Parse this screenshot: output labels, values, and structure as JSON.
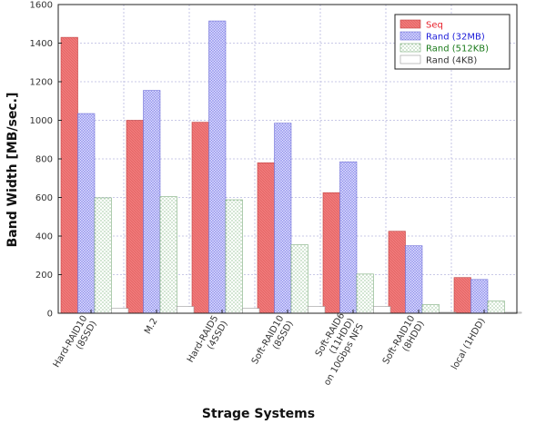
{
  "chart_data": {
    "type": "bar",
    "title": "",
    "xlabel": "Strage Systems",
    "ylabel": "Band Width [MB/sec.]",
    "ylim": [
      0,
      1600
    ],
    "yticks": [
      0,
      200,
      400,
      600,
      800,
      1000,
      1200,
      1400,
      1600
    ],
    "grid": true,
    "legend_position": "top-right",
    "categories": [
      [
        "Hard-RAID10",
        "(8SSD)"
      ],
      [
        "M.2"
      ],
      [
        "Hard-RAID5",
        "(4SSD)"
      ],
      [
        "Soft-RAID10",
        "(8SSD)"
      ],
      [
        "Soft-RAID6",
        "(11HDD)",
        "on 10Gbps NFS"
      ],
      [
        "Soft-RAID10",
        "(8HDD)"
      ],
      [
        "local (1HDD)"
      ]
    ],
    "series": [
      {
        "name": "Seq",
        "values": [
          1430,
          1000,
          990,
          780,
          625,
          425,
          185
        ],
        "color": "#f08080",
        "pattern": "solid-hatch",
        "legend_color": "#e8202a"
      },
      {
        "name": "Rand (32MB)",
        "values": [
          1035,
          1155,
          1515,
          985,
          785,
          350,
          175
        ],
        "color": "#c8c8f8",
        "pattern": "crosshatch",
        "legend_color": "#1a1ad8"
      },
      {
        "name": "Rand (512KB)",
        "values": [
          598,
          604,
          588,
          355,
          203,
          45,
          63
        ],
        "color": "#e8f4e8",
        "pattern": "dots",
        "legend_color": "#1a7a1a"
      },
      {
        "name": "Rand (4KB)",
        "values": [
          25,
          35,
          25,
          35,
          35,
          5,
          5
        ],
        "color": "#ffffff",
        "pattern": "plain",
        "legend_color": "#333333"
      }
    ]
  }
}
